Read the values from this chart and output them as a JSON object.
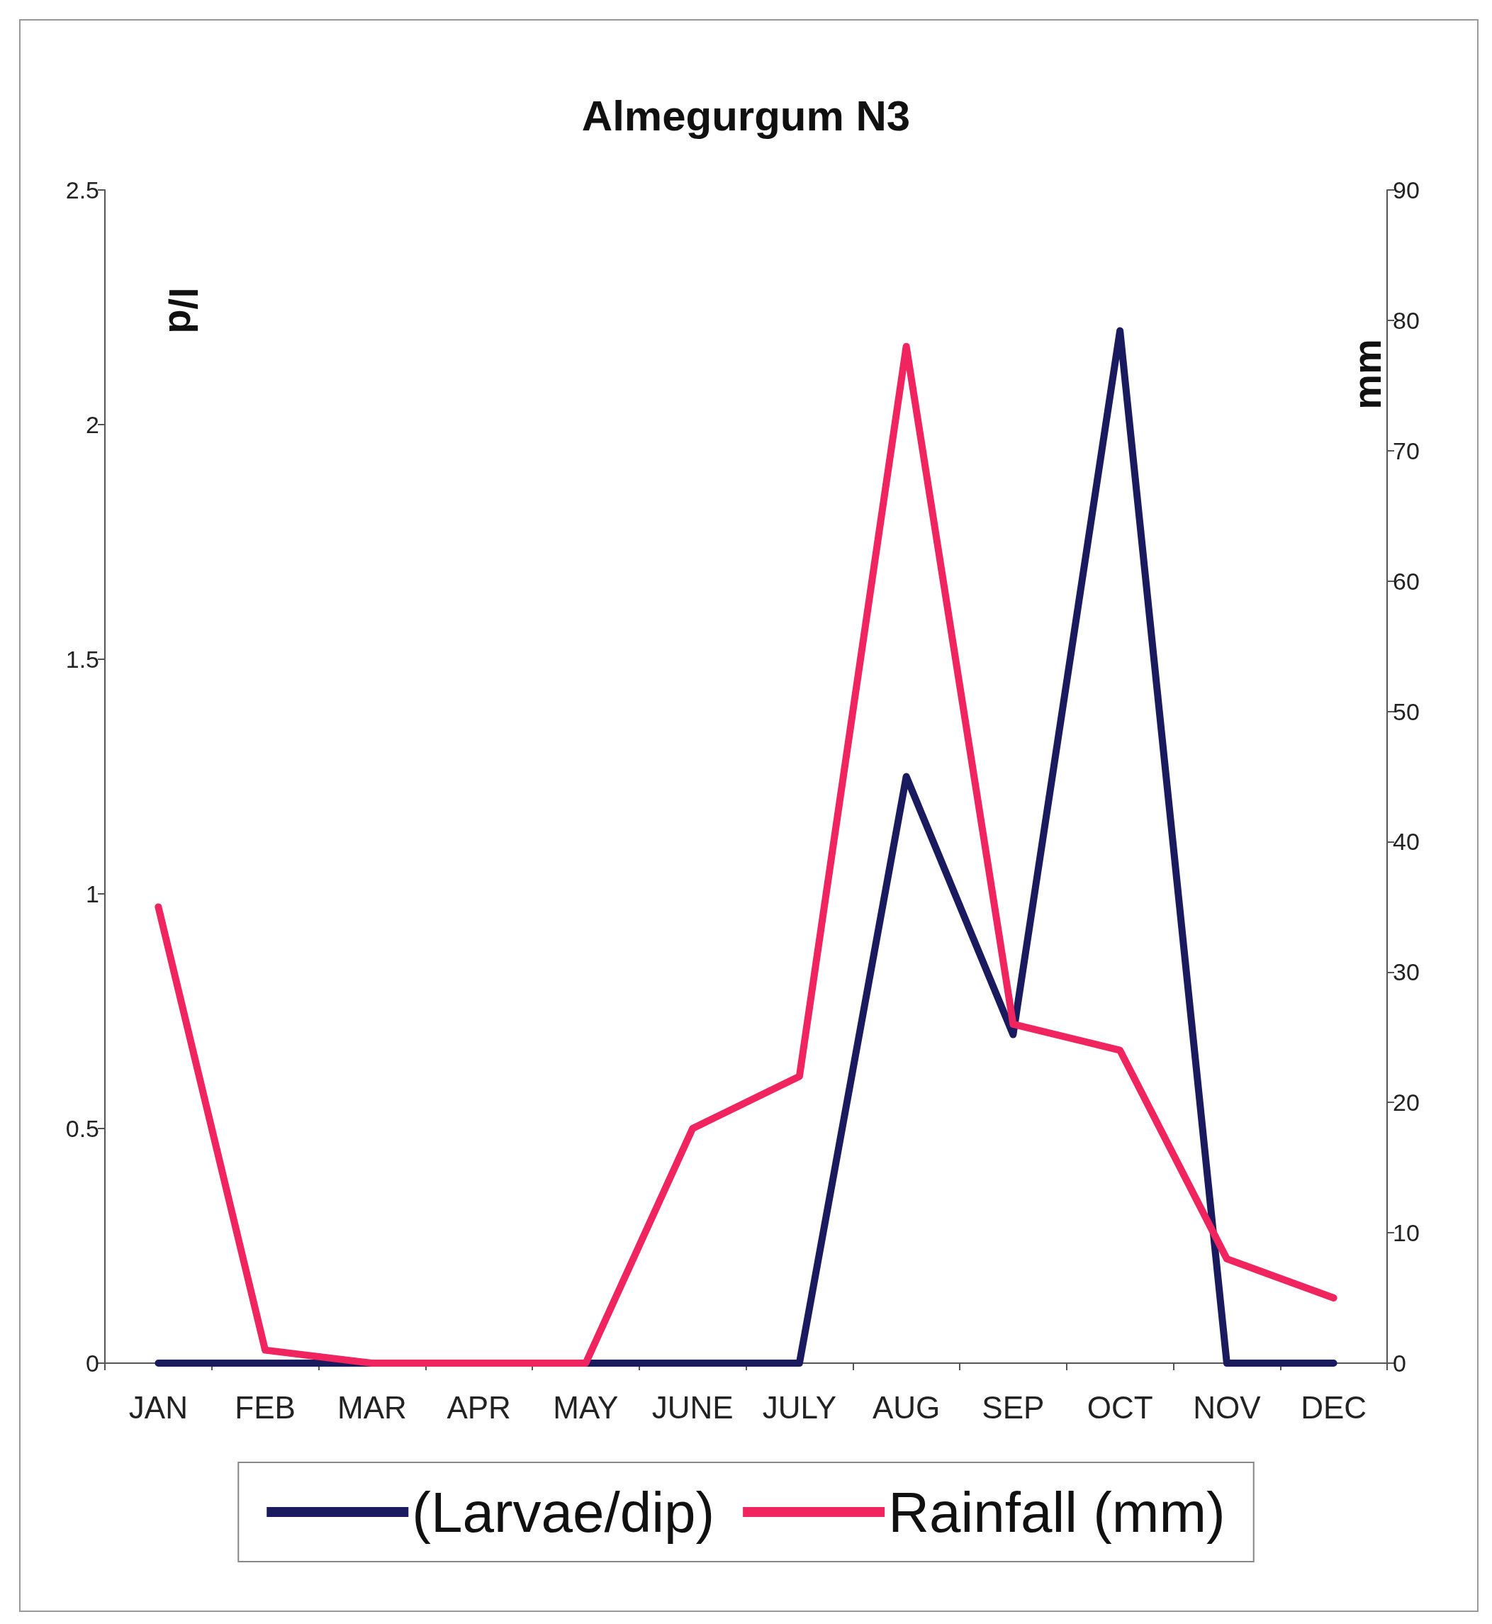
{
  "chart_data": {
    "type": "line",
    "title": "Almegurgum N3",
    "ylabel": "l/d",
    "y2label": "mm",
    "categories": [
      "JAN",
      "FEB",
      "MAR",
      "APR",
      "MAY",
      "JUNE",
      "JULY",
      "AUG",
      "SEP",
      "OCT",
      "NOV",
      "DEC"
    ],
    "series": [
      {
        "name": "(Larvae/dip)",
        "color": "#1a1a5e",
        "values": [
          0,
          0,
          0,
          0,
          0,
          0,
          0,
          1.25,
          0.7,
          2.2,
          0,
          0
        ]
      },
      {
        "name": "Rainfall (mm)",
        "color": "#f0245f",
        "axis": "y2",
        "values": [
          35,
          1,
          0,
          0,
          0,
          18,
          22,
          78,
          26,
          24,
          8,
          5
        ]
      }
    ],
    "ylim": [
      0,
      2.5
    ],
    "yticks": [
      0,
      0.5,
      1,
      1.5,
      2,
      2.5
    ],
    "y2lim": [
      0,
      90
    ],
    "y2ticks": [
      0,
      10,
      20,
      30,
      40,
      50,
      60,
      70,
      80,
      90
    ],
    "grid": false,
    "legend": "bottom",
    "marker": "none",
    "line_style": "solid"
  }
}
